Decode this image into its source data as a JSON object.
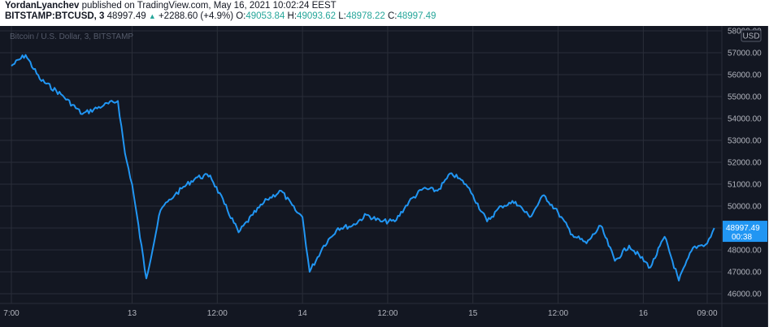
{
  "header": {
    "author": "YordanLyanchev",
    "published_text": "published on TradingView.com, May 16, 2021 10:02:24 EEST",
    "symbol_label": "BITSTAMP:BTCUSD, 3",
    "last_price": "48997.49",
    "change_text": "+2288.60 (+4.9%)",
    "o_label": "O:",
    "o_value": "49053.84",
    "h_label": "H:",
    "h_value": "49093.62",
    "l_label": "L:",
    "l_value": "48978.22",
    "c_label": "C:",
    "c_value": "48997.49"
  },
  "pane_title": "Bitcoin / U.S. Dollar, 3, BITSTAMP",
  "currency_badge": "USD",
  "price_badge": {
    "price": "48997.49",
    "countdown": "00:38"
  },
  "colors": {
    "background": "#131722",
    "line": "#2196f3",
    "grid": "#2a2e39",
    "text": "#b2b5be",
    "badge": "#2196f3"
  },
  "chart_data": {
    "type": "line",
    "title": "Bitcoin / U.S. Dollar, 3, BITSTAMP",
    "series": [
      {
        "name": "BTCUSD",
        "x": [
          "May 12 07:00",
          "May 12 09:00",
          "May 12 11:00",
          "May 12 14:00",
          "May 12 17:00",
          "May 12 20:00",
          "May 12 22:00",
          "May 12 23:00",
          "May 13 00:00",
          "May 13 02:00",
          "May 13 04:00",
          "May 13 05:00",
          "May 13 06:00",
          "May 13 07:00",
          "May 13 09:00",
          "May 13 11:00",
          "May 13 13:00",
          "May 13 15:00",
          "May 13 17:00",
          "May 13 19:00",
          "May 13 21:00",
          "May 13 23:00",
          "May 14 00:00",
          "May 14 01:00",
          "May 14 03:00",
          "May 14 05:00",
          "May 14 07:00",
          "May 14 09:00",
          "May 14 11:00",
          "May 14 13:00",
          "May 14 15:00",
          "May 14 17:00",
          "May 14 19:00",
          "May 14 21:00",
          "May 14 23:00",
          "May 15 00:00",
          "May 15 02:00",
          "May 15 04:00",
          "May 15 06:00",
          "May 15 08:00",
          "May 15 10:00",
          "May 15 12:00",
          "May 15 14:00",
          "May 15 16:00",
          "May 15 18:00",
          "May 15 20:00",
          "May 15 22:00",
          "May 16 01:00",
          "May 16 03:00",
          "May 16 05:00",
          "May 16 07:00",
          "May 16 08:00",
          "May 16 09:00",
          "May 16 10:00"
        ],
        "y": [
          56400,
          56900,
          55800,
          55100,
          54200,
          54600,
          54800,
          52400,
          51000,
          46700,
          49800,
          50200,
          50500,
          50800,
          51300,
          51400,
          50100,
          48800,
          49600,
          50300,
          50700,
          49800,
          49500,
          47000,
          48200,
          49000,
          49100,
          49600,
          49300,
          49300,
          50200,
          50800,
          50700,
          51500,
          51000,
          50500,
          49300,
          50000,
          50200,
          49500,
          50500,
          49700,
          48700,
          48300,
          49100,
          47500,
          48200,
          47200,
          48600,
          46600,
          48100,
          48200,
          48300,
          48997.49
        ]
      }
    ],
    "ylim": [
      45600,
      58300
    ],
    "y_ticks": [
      "46000.00",
      "47000.00",
      "48000.00",
      "49000.00",
      "50000.00",
      "51000.00",
      "52000.00",
      "53000.00",
      "54000.00",
      "55000.00",
      "56000.00",
      "57000.00",
      "58000.00"
    ],
    "x_ticks": [
      "7:00",
      "13",
      "12:00",
      "14",
      "12:00",
      "15",
      "12:00",
      "16",
      "09:00"
    ],
    "grid": true,
    "last_value": 48997.49
  }
}
